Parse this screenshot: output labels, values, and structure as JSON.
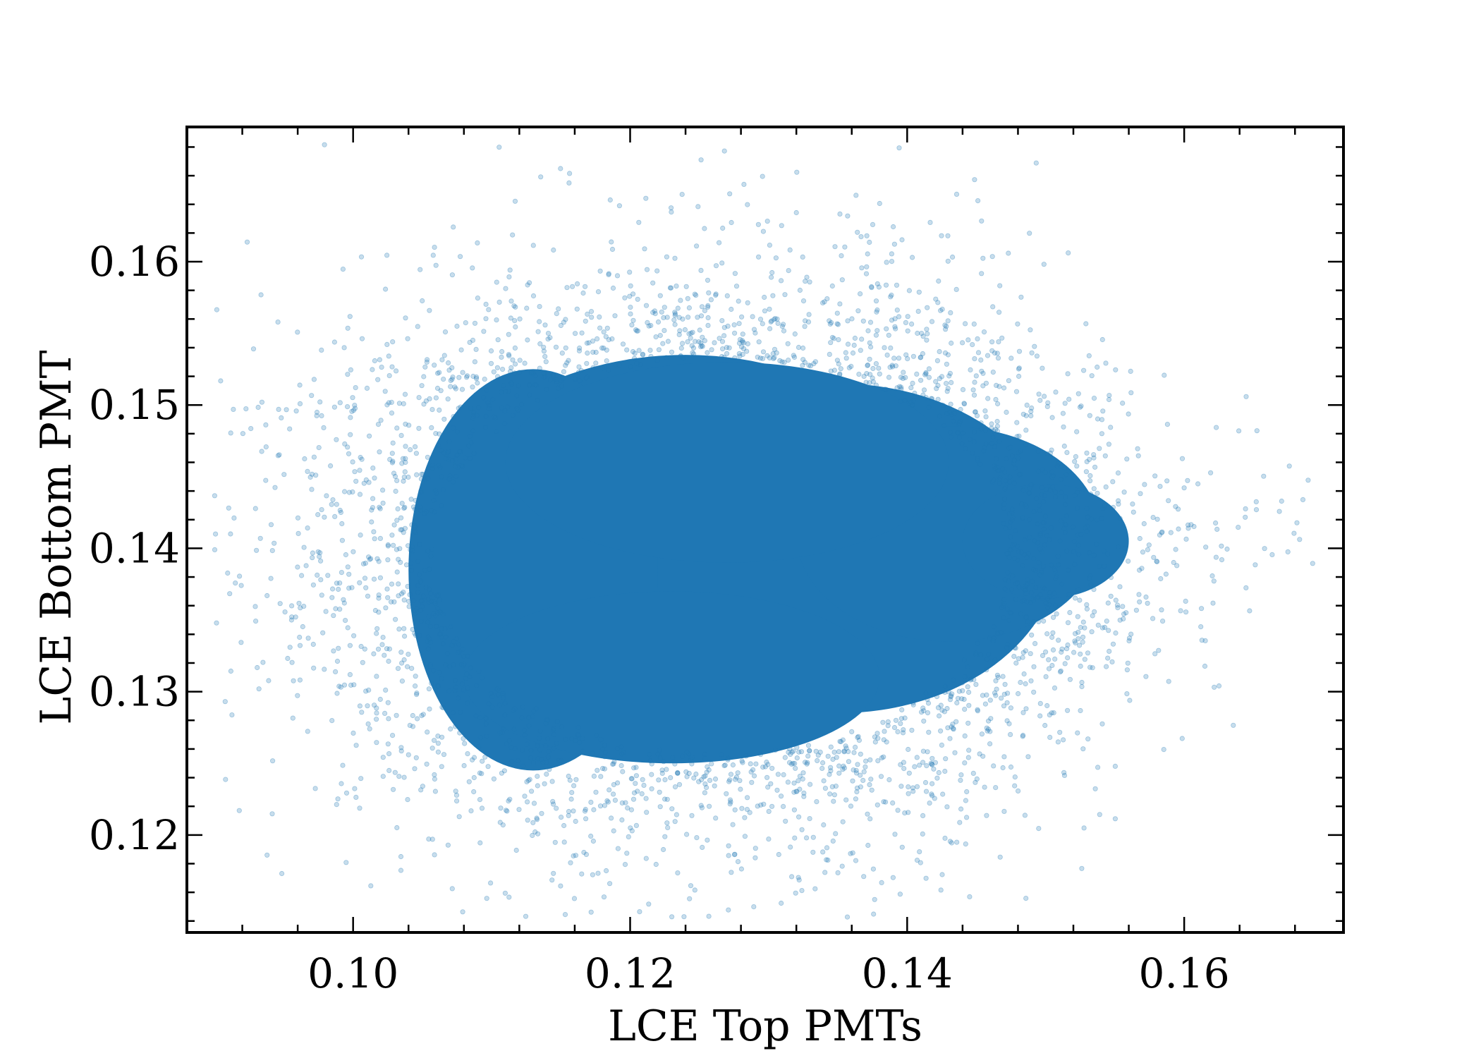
{
  "chart_data": {
    "type": "scatter",
    "xlabel": "LCE Top PMTs",
    "ylabel": "LCE Bottom PMT",
    "xlim": [
      0.088,
      0.1715
    ],
    "ylim": [
      0.1132,
      0.1694
    ],
    "xticks": [
      0.1,
      0.12,
      0.14,
      0.16
    ],
    "xtick_labels": [
      "0.10",
      "0.12",
      "0.14",
      "0.16"
    ],
    "yticks": [
      0.12,
      0.13,
      0.14,
      0.15,
      0.16
    ],
    "ytick_labels": [
      "0.12",
      "0.13",
      "0.14",
      "0.15",
      "0.16"
    ],
    "x_minor_step": 0.004,
    "y_minor_step": 0.002,
    "grid": false,
    "legend": "none",
    "marker_color": "#1f77b4",
    "marker_alpha": 0.25,
    "distribution": {
      "point_count_shown": "dense cloud",
      "core_x_range": [
        0.105,
        0.15
      ],
      "core_y_range": [
        0.124,
        0.154
      ],
      "center": [
        0.127,
        0.139
      ],
      "tail_right_point": [
        0.168,
        0.141
      ],
      "tail_left_point": [
        0.092,
        0.133
      ],
      "max_y_point": [
        0.123,
        0.1675
      ],
      "min_y_point": [
        0.116,
        0.1135
      ]
    }
  }
}
